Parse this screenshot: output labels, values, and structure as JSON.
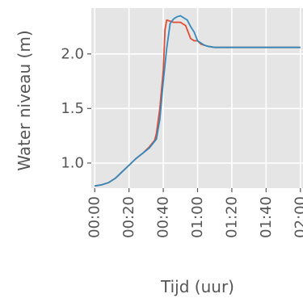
{
  "chart_data": {
    "type": "line",
    "title": "",
    "xlabel": "Tijd (uur)",
    "ylabel": "Water niveau (m)",
    "xlim": [
      -2,
      122
    ],
    "ylim": [
      0.77,
      2.42
    ],
    "x_ticks": [
      {
        "value": 0,
        "label": "00:00"
      },
      {
        "value": 20,
        "label": "00:20"
      },
      {
        "value": 40,
        "label": "00:40"
      },
      {
        "value": 60,
        "label": "01:00"
      },
      {
        "value": 80,
        "label": "01:20"
      },
      {
        "value": 100,
        "label": "01:40"
      },
      {
        "value": 120,
        "label": "02:00"
      }
    ],
    "y_ticks": [
      {
        "value": 1.0,
        "label": "1.0"
      },
      {
        "value": 1.5,
        "label": "1.5"
      },
      {
        "value": 2.0,
        "label": "2.0"
      }
    ],
    "grid": true,
    "background": "#e5e5e5",
    "series": [
      {
        "color": "#e24a33",
        "x": [
          0,
          4,
          8,
          12,
          16,
          20,
          24,
          28,
          32,
          35,
          36,
          38,
          40,
          41,
          42,
          44,
          46,
          50,
          53,
          56,
          58,
          60,
          62,
          64,
          66,
          70,
          80,
          100,
          120
        ],
        "y": [
          0.79,
          0.8,
          0.82,
          0.86,
          0.92,
          0.98,
          1.04,
          1.09,
          1.15,
          1.21,
          1.27,
          1.5,
          1.85,
          2.22,
          2.31,
          2.3,
          2.29,
          2.29,
          2.26,
          2.14,
          2.12,
          2.12,
          2.09,
          2.08,
          2.07,
          2.06,
          2.06,
          2.06,
          2.06
        ]
      },
      {
        "color": "#348abd",
        "x": [
          0,
          4,
          8,
          12,
          16,
          20,
          24,
          28,
          32,
          36,
          38,
          40,
          42,
          44,
          46,
          48,
          50,
          54,
          56,
          58,
          60,
          62,
          64,
          66,
          70,
          80,
          100,
          120
        ],
        "y": [
          0.79,
          0.8,
          0.82,
          0.86,
          0.92,
          0.98,
          1.04,
          1.09,
          1.14,
          1.22,
          1.4,
          1.75,
          2.05,
          2.28,
          2.32,
          2.34,
          2.35,
          2.31,
          2.25,
          2.2,
          2.12,
          2.1,
          2.08,
          2.07,
          2.06,
          2.06,
          2.06,
          2.06
        ]
      }
    ]
  }
}
